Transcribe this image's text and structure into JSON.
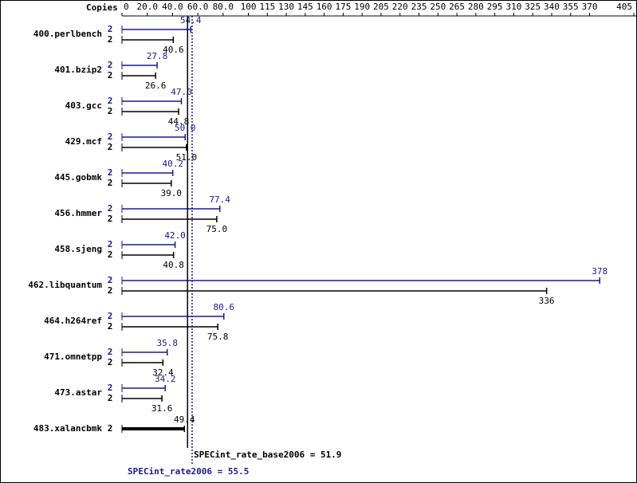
{
  "chart_data": {
    "type": "bar",
    "orientation": "horizontal",
    "copies_label": "Copies",
    "categories": [
      "400.perlbench",
      "401.bzip2",
      "403.gcc",
      "429.mcf",
      "445.gobmk",
      "456.hmmer",
      "458.sjeng",
      "462.libquantum",
      "464.h264ref",
      "471.omnetpp",
      "473.astar",
      "483.xalancbmk"
    ],
    "series": [
      {
        "name": "SPECint_rate2006",
        "color": "#1a1a8c",
        "copies": [
          2,
          2,
          2,
          2,
          2,
          2,
          2,
          2,
          2,
          2,
          2,
          null
        ],
        "values": [
          54.4,
          27.8,
          47.0,
          50.0,
          40.2,
          77.4,
          42.0,
          378,
          80.6,
          35.8,
          34.2,
          null
        ],
        "value_labels": [
          "54.4",
          "27.8",
          "47.0",
          "50.0",
          "40.2",
          "77.4",
          "42.0",
          "378",
          "80.6",
          "35.8",
          "34.2",
          null
        ]
      },
      {
        "name": "SPECint_rate_base2006",
        "color": "#000000",
        "copies": [
          2,
          2,
          2,
          2,
          2,
          2,
          2,
          2,
          2,
          2,
          2,
          2
        ],
        "values": [
          40.6,
          26.6,
          44.8,
          51.0,
          39.0,
          75.0,
          40.8,
          336,
          75.8,
          32.4,
          31.6,
          49.4
        ],
        "value_labels": [
          "40.6",
          "26.6",
          "44.8",
          "51.0",
          "39.0",
          "75.0",
          "40.8",
          "336",
          "75.8",
          "32.4",
          "31.6",
          "49.4"
        ]
      }
    ],
    "reference_lines": [
      {
        "label": "SPECint_rate_base2006 = 51.9",
        "value": 51.9,
        "color": "#000000",
        "style": "solid"
      },
      {
        "label": "SPECint_rate2006 = 55.5",
        "value": 55.5,
        "color": "#1a1a8c",
        "style": "dotted"
      }
    ],
    "xlim": [
      0,
      405
    ],
    "xticks": [
      0,
      {
        "value": 20,
        "label": "20.0"
      },
      {
        "value": 40,
        "label": "40.0"
      },
      {
        "value": 60,
        "label": "60.0"
      },
      {
        "value": 80,
        "label": "80.0"
      },
      100,
      115,
      130,
      145,
      160,
      175,
      190,
      205,
      220,
      235,
      250,
      265,
      280,
      295,
      310,
      325,
      340,
      355,
      370,
      405
    ]
  }
}
